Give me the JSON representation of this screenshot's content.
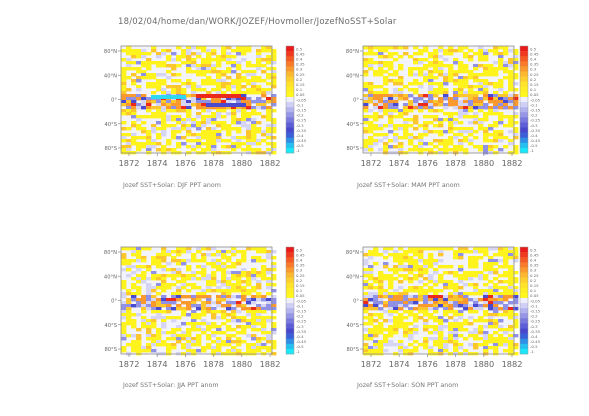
{
  "header": {
    "path_text": "18/02/04/home/dan/WORK/JOZEF/Hovmoller/JozefNoSST+Solar"
  },
  "chart_data": [
    {
      "type": "heatmap",
      "title": "Jozef SST+Solar: DJF PPT anom",
      "x_ticks": [
        "1872",
        "1874",
        "1876",
        "1878",
        "1880",
        "1882"
      ],
      "y_ticks": [
        "80°N",
        "40°N",
        "0°",
        "40°S",
        "80°S"
      ],
      "colorbar": {
        "levels": [
          "0.5",
          "0.45",
          "0.4",
          "0.35",
          "0.3",
          "0.25",
          "0.2",
          "0.15",
          "0.1",
          "0.05",
          "-0.05",
          "-0.1",
          "-0.15",
          "-0.2",
          "-0.25",
          "-0.3",
          "-0.35",
          "-0.4",
          "-0.45",
          "-0.5",
          "-1"
        ],
        "colors": [
          "#e81a1a",
          "#f03a20",
          "#f55a25",
          "#f87a2a",
          "#fa9a2e",
          "#fcb830",
          "#fdcf2e",
          "#ffe22a",
          "#ffee25",
          "#fff71e",
          "#eeeeff",
          "#d0d0f6",
          "#b3b3ee",
          "#9696e6",
          "#7a7ade",
          "#5e5ed7",
          "#4848ce",
          "#3a5fd8",
          "#2f8fe6",
          "#25c0f0",
          "#1ae8f8"
        ]
      }
    },
    {
      "type": "heatmap",
      "title": "Jozef SST+Solar: MAM PPT anom",
      "x_ticks": [
        "1872",
        "1874",
        "1876",
        "1878",
        "1880",
        "1882"
      ],
      "y_ticks": [
        "80°N",
        "40°N",
        "0°",
        "40°S",
        "80°S"
      ],
      "colorbar": {
        "levels": [
          "0.5",
          "0.45",
          "0.4",
          "0.35",
          "0.3",
          "0.25",
          "0.2",
          "0.15",
          "0.1",
          "0.05",
          "-0.05",
          "-0.1",
          "-0.15",
          "-0.2",
          "-0.25",
          "-0.3",
          "-0.35",
          "-0.4",
          "-0.45",
          "-0.5",
          "-1"
        ],
        "colors": [
          "#e81a1a",
          "#f03a20",
          "#f55a25",
          "#f87a2a",
          "#fa9a2e",
          "#fcb830",
          "#fdcf2e",
          "#ffe22a",
          "#ffee25",
          "#fff71e",
          "#eeeeff",
          "#d0d0f6",
          "#b3b3ee",
          "#9696e6",
          "#7a7ade",
          "#5e5ed7",
          "#4848ce",
          "#3a5fd8",
          "#2f8fe6",
          "#25c0f0",
          "#1ae8f8"
        ]
      }
    },
    {
      "type": "heatmap",
      "title": "Jozef SST+Solar: JJA PPT anom",
      "x_ticks": [
        "1872",
        "1874",
        "1876",
        "1878",
        "1880",
        "1882"
      ],
      "y_ticks": [
        "80°N",
        "40°N",
        "0°",
        "40°S",
        "80°S"
      ],
      "colorbar": {
        "levels": [
          "0.5",
          "0.45",
          "0.4",
          "0.35",
          "0.3",
          "0.25",
          "0.2",
          "0.15",
          "0.1",
          "0.05",
          "-0.05",
          "-0.1",
          "-0.15",
          "-0.2",
          "-0.25",
          "-0.3",
          "-0.35",
          "-0.4",
          "-0.45",
          "-0.5",
          "-1"
        ],
        "colors": [
          "#e81a1a",
          "#f03a20",
          "#f55a25",
          "#f87a2a",
          "#fa9a2e",
          "#fcb830",
          "#fdcf2e",
          "#ffe22a",
          "#ffee25",
          "#fff71e",
          "#eeeeff",
          "#d0d0f6",
          "#b3b3ee",
          "#9696e6",
          "#7a7ade",
          "#5e5ed7",
          "#4848ce",
          "#3a5fd8",
          "#2f8fe6",
          "#25c0f0",
          "#1ae8f8"
        ]
      }
    },
    {
      "type": "heatmap",
      "title": "Jozef SST+Solar: SON PPT anom",
      "x_ticks": [
        "1872",
        "1874",
        "1876",
        "1878",
        "1880",
        "1882"
      ],
      "y_ticks": [
        "80°N",
        "40°N",
        "0°",
        "40°S",
        "80°S"
      ],
      "colorbar": {
        "levels": [
          "0.5",
          "0.45",
          "0.4",
          "0.35",
          "0.3",
          "0.25",
          "0.2",
          "0.15",
          "0.1",
          "0.05",
          "-0.05",
          "-0.1",
          "-0.15",
          "-0.2",
          "-0.25",
          "-0.3",
          "-0.35",
          "-0.4",
          "-0.45",
          "-0.5",
          "-1"
        ],
        "colors": [
          "#e81a1a",
          "#f03a20",
          "#f55a25",
          "#f87a2a",
          "#fa9a2e",
          "#fcb830",
          "#fdcf2e",
          "#ffe22a",
          "#ffee25",
          "#fff71e",
          "#eeeeff",
          "#d0d0f6",
          "#b3b3ee",
          "#9696e6",
          "#7a7ade",
          "#5e5ed7",
          "#4848ce",
          "#3a5fd8",
          "#2f8fe6",
          "#25c0f0",
          "#1ae8f8"
        ]
      }
    }
  ]
}
